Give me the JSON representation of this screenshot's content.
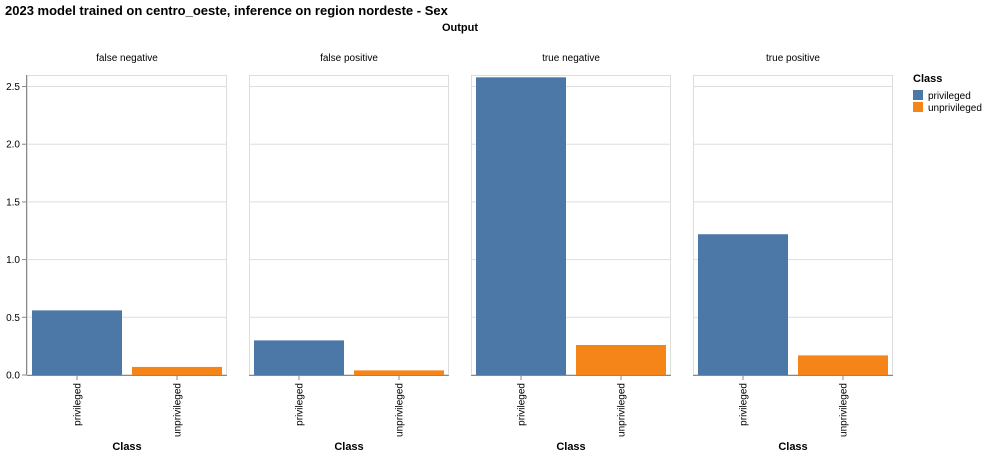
{
  "chart_data": {
    "type": "bar",
    "title": "2023 model trained on centro_oeste, inference on region nordeste - Sex",
    "column_title": "Output",
    "facets": [
      "false negative",
      "false positive",
      "true negative",
      "true positive"
    ],
    "categories": [
      "privileged",
      "unprivileged"
    ],
    "values": {
      "false negative": [
        0.56,
        0.07
      ],
      "false positive": [
        0.3,
        0.04
      ],
      "true negative": [
        2.58,
        0.26
      ],
      "true positive": [
        1.22,
        0.17
      ]
    },
    "xlabel": "Class",
    "ylabel": "",
    "ylim": [
      0,
      2.6
    ],
    "yticks": [
      "0.0",
      "0.5",
      "1.0",
      "1.5",
      "2.0",
      "2.5"
    ],
    "grid": true,
    "legend": {
      "title": "Class",
      "position": "right",
      "items": [
        {
          "label": "privileged",
          "color": "#4c78a8"
        },
        {
          "label": "unprivileged",
          "color": "#f58518"
        }
      ]
    }
  }
}
